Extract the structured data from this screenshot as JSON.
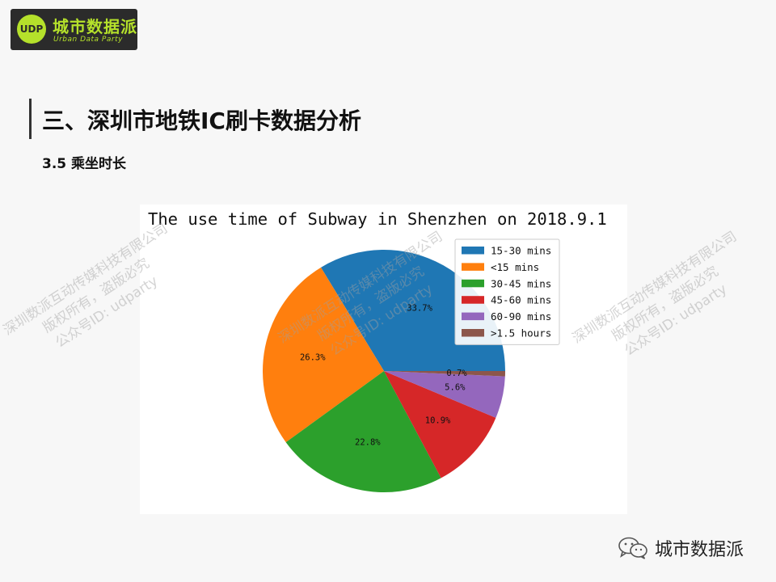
{
  "logo": {
    "mark": "UDP",
    "name": "城市数据派",
    "subtitle": "Urban Data Party"
  },
  "header": {
    "section_title": "三、深圳市地铁IC刷卡数据分析",
    "sub_title": "3.5  乘坐时长"
  },
  "chart_data": {
    "type": "pie",
    "title": "The use time of Subway in Shenzhen on 2018.9.1",
    "legend_position": "top-right",
    "slices": [
      {
        "label": "15-30 mins",
        "value": 33.7,
        "text": "33.7%",
        "color": "#1f77b4"
      },
      {
        "label": "<15 mins",
        "value": 26.3,
        "text": "26.3%",
        "color": "#ff7f0e"
      },
      {
        "label": "30-45 mins",
        "value": 22.8,
        "text": "22.8%",
        "color": "#2ca02c"
      },
      {
        "label": "45-60 mins",
        "value": 10.9,
        "text": "10.9%",
        "color": "#d62728"
      },
      {
        "label": "60-90 mins",
        "value": 5.6,
        "text": "5.6%",
        "color": "#9467bd"
      },
      {
        "label": ">1.5 hours",
        "value": 0.7,
        "text": "0.7%",
        "color": "#8c564b"
      }
    ]
  },
  "watermark": {
    "line1": "深圳数派互动传媒科技有限公司",
    "line2": "版权所有，盗版必究",
    "line3": "公众号ID: udparty"
  },
  "footer": {
    "brand": "城市数据派"
  }
}
